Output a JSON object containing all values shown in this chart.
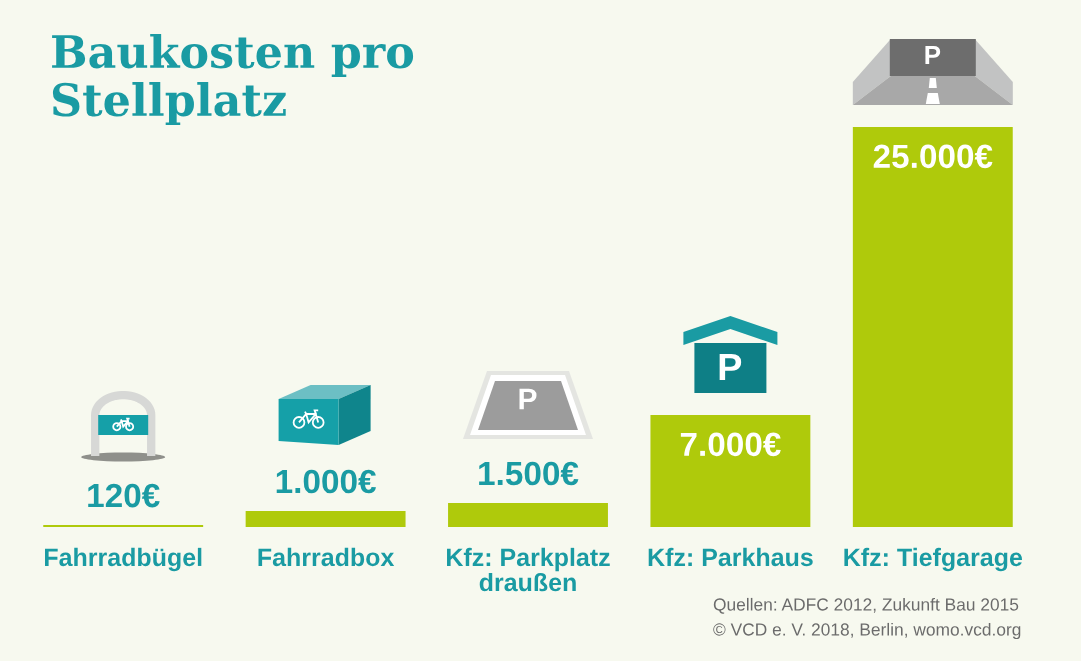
{
  "chart_data": {
    "type": "bar",
    "title": "Baukosten pro\nStellplatz",
    "categories": [
      "Fahrradbügel",
      "Fahrradbox",
      "Kfz: Parkplatz\ndraußen",
      "Kfz: Parkhaus",
      "Kfz: Tiefgarage"
    ],
    "values": [
      120,
      1000,
      1500,
      7000,
      25000
    ],
    "value_labels": [
      "120€",
      "1.000€",
      "1.500€",
      "7.000€",
      "25.000€"
    ],
    "color": "#afca0b",
    "tick_labels": "x",
    "annotations": [
      "Quellen: ADFC 2012, Zukunft Bau 2015",
      "© VCD e. V. 2018, Berlin, womo.vcd.org"
    ]
  }
}
